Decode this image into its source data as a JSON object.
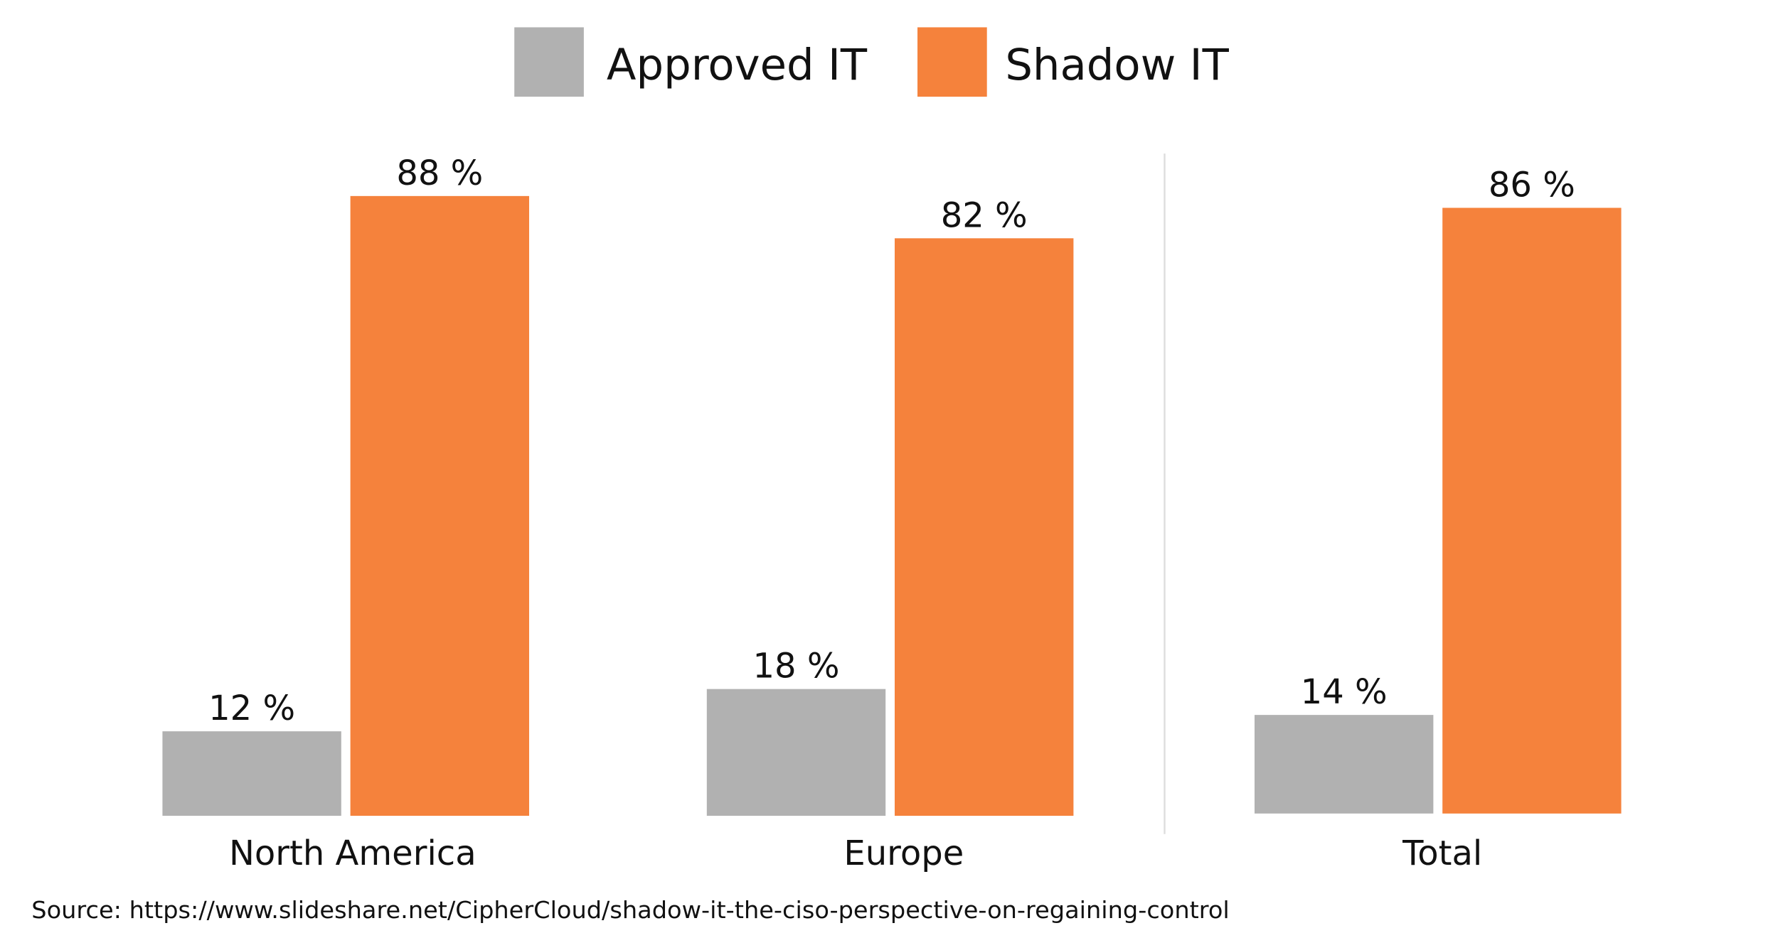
{
  "chart_data": {
    "type": "bar",
    "categories": [
      "North America",
      "Europe",
      "Total"
    ],
    "series": [
      {
        "name": "Approved IT",
        "color": "#b1b1b1",
        "values": [
          12,
          18,
          14
        ],
        "labels": [
          "12 %",
          "18 %",
          "14 %"
        ]
      },
      {
        "name": "Shadow IT",
        "color": "#f5823c",
        "values": [
          88,
          82,
          86
        ],
        "labels": [
          "88 %",
          "82 %",
          "86 %"
        ]
      }
    ],
    "ylim": [
      0,
      100
    ],
    "grid": false,
    "legend_placement": "top-center",
    "separator_before_category": "Total",
    "source": "Source: https://www.slideshare.net/CipherCloud/shadow-it-the-ciso-perspective-on-regaining-control"
  }
}
